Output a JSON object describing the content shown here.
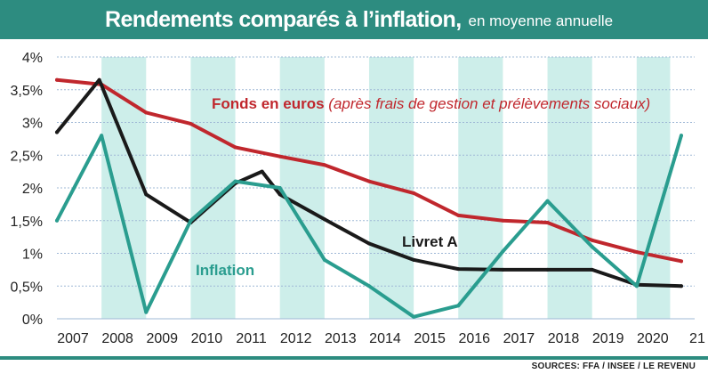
{
  "header": {
    "title": "Rendements comparés à l’inflation,",
    "subtitle": "en moyenne annuelle"
  },
  "source": "SOURCES: FFA / INSEE / LE REVENU",
  "colors": {
    "header_bg": "#2d8c80",
    "fonds": "#c0272d",
    "livret": "#1a1a1a",
    "inflation": "#2a9d8f",
    "band": "#cdeeea",
    "grid": "#9fb8d6"
  },
  "chart_data": {
    "type": "line",
    "title": "Rendements comparés à l’inflation, en moyenne annuelle",
    "x_labels": [
      "2007",
      "2008",
      "2009",
      "2010",
      "2011",
      "2012",
      "2013",
      "2014",
      "2015",
      "2016",
      "2017",
      "2018",
      "2019",
      "2020",
      "21"
    ],
    "y_ticks": [
      "0%",
      "0,5%",
      "1%",
      "1,5%",
      "2%",
      "2,5%",
      "3%",
      "3,5%",
      "4%"
    ],
    "ylim": [
      0,
      4
    ],
    "grid": true,
    "series": [
      {
        "name": "Fonds en euros",
        "annotation": "(après frais de gestion et prélèvements sociaux)",
        "color": "#c0272d",
        "points": [
          [
            2007,
            3.65
          ],
          [
            2008,
            3.58
          ],
          [
            2009,
            3.15
          ],
          [
            2010,
            2.98
          ],
          [
            2011,
            2.62
          ],
          [
            2012,
            2.48
          ],
          [
            2013,
            2.35
          ],
          [
            2014,
            2.1
          ],
          [
            2015,
            1.92
          ],
          [
            2016,
            1.58
          ],
          [
            2017,
            1.5
          ],
          [
            2018,
            1.47
          ],
          [
            2019,
            1.2
          ],
          [
            2020,
            1.02
          ],
          [
            2021,
            0.88
          ]
        ]
      },
      {
        "name": "Livret A",
        "color": "#1a1a1a",
        "points": [
          [
            2007,
            2.85
          ],
          [
            2007.95,
            3.65
          ],
          [
            2009,
            1.9
          ],
          [
            2010,
            1.47
          ],
          [
            2011,
            2.07
          ],
          [
            2011.6,
            2.25
          ],
          [
            2012,
            1.9
          ],
          [
            2013,
            1.52
          ],
          [
            2014,
            1.15
          ],
          [
            2015,
            0.9
          ],
          [
            2016,
            0.76
          ],
          [
            2017,
            0.75
          ],
          [
            2018,
            0.75
          ],
          [
            2019,
            0.75
          ],
          [
            2020,
            0.52
          ],
          [
            2021,
            0.5
          ]
        ]
      },
      {
        "name": "Inflation",
        "color": "#2a9d8f",
        "points": [
          [
            2007,
            1.5
          ],
          [
            2008,
            2.8
          ],
          [
            2009,
            0.1
          ],
          [
            2010,
            1.5
          ],
          [
            2011,
            2.1
          ],
          [
            2012,
            2.0
          ],
          [
            2013,
            0.9
          ],
          [
            2014,
            0.5
          ],
          [
            2015,
            0.03
          ],
          [
            2016,
            0.2
          ],
          [
            2017,
            1.03
          ],
          [
            2018,
            1.8
          ],
          [
            2019,
            1.1
          ],
          [
            2020,
            0.5
          ],
          [
            2021,
            2.8
          ]
        ]
      }
    ]
  }
}
